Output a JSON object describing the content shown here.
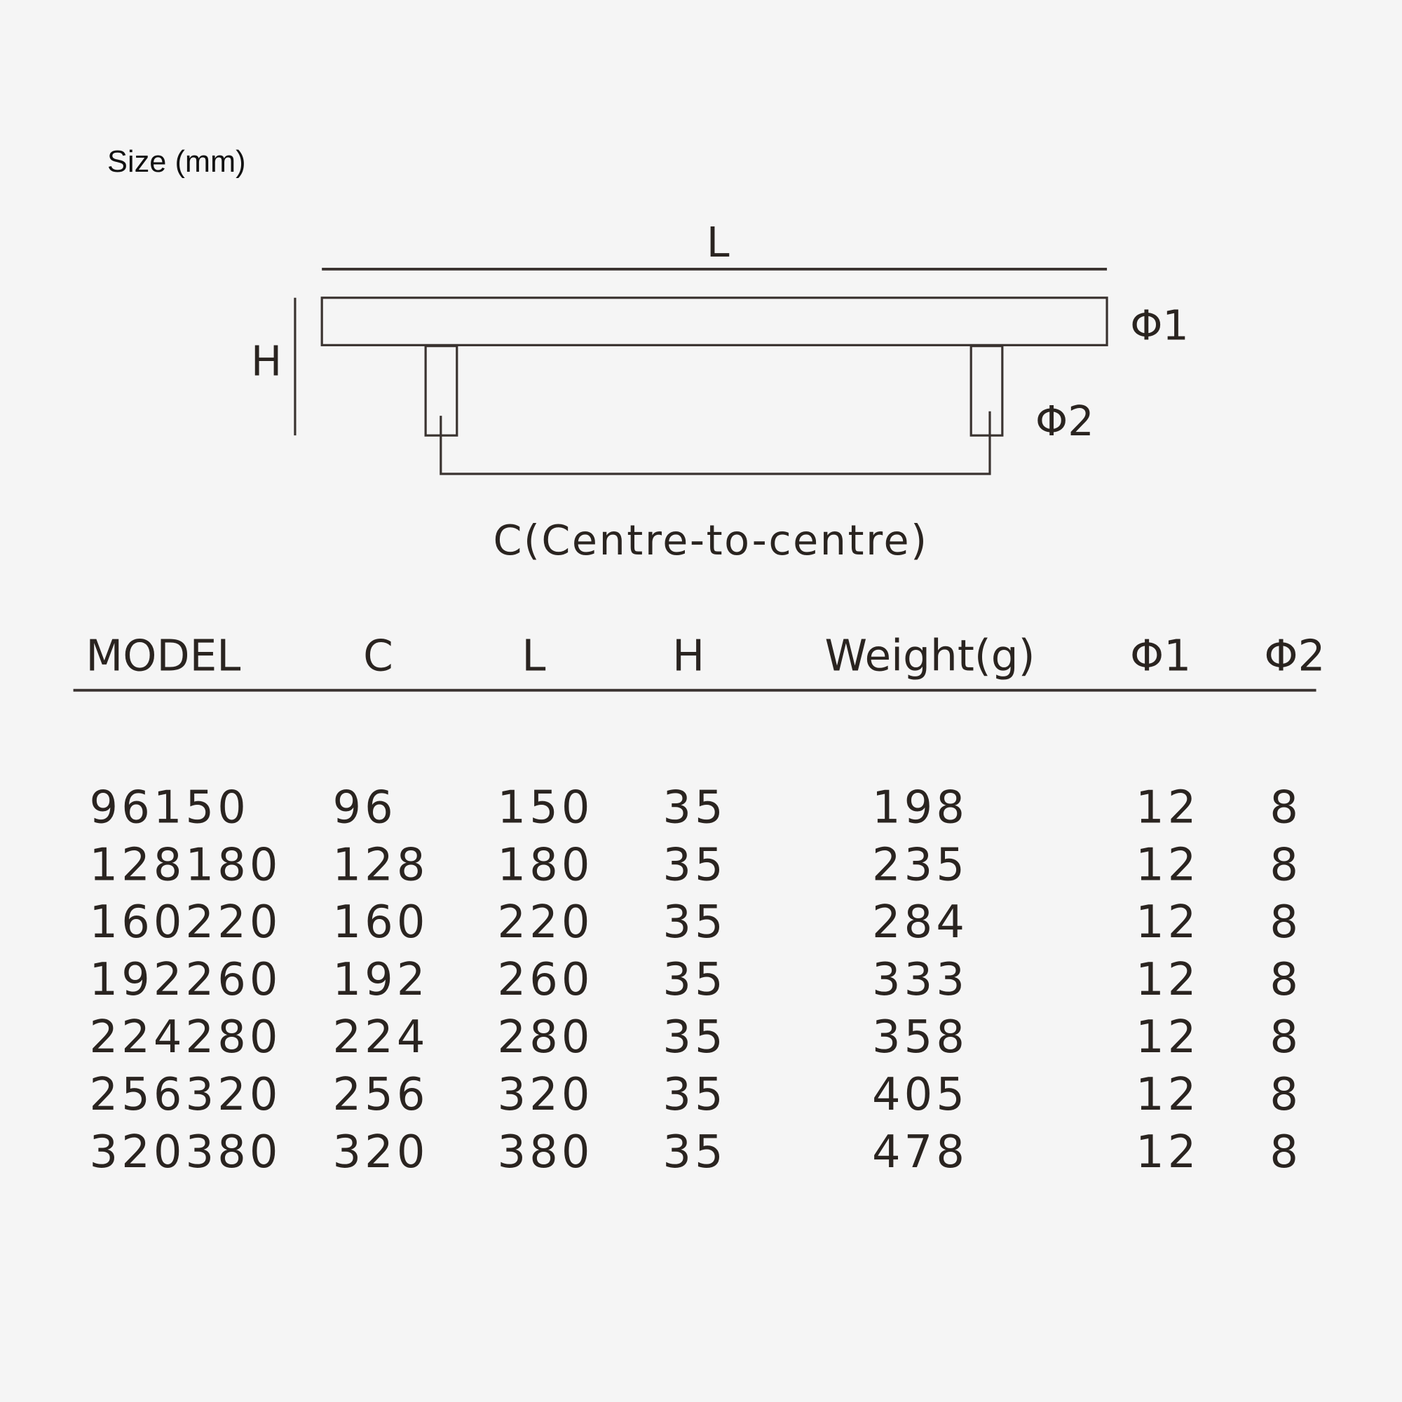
{
  "caption": "Size (mm)",
  "diagram": {
    "label_L": "L",
    "label_H": "H",
    "label_phi1": "Φ1",
    "label_phi2": "Φ2",
    "label_C": "C(Centre-to-centre)"
  },
  "table": {
    "headers": [
      "MODEL",
      "C",
      "L",
      "H",
      "Weight(g)",
      "Φ1",
      "Φ2"
    ],
    "rows": [
      [
        "96150",
        "96",
        "150",
        "35",
        "198",
        "12",
        "8"
      ],
      [
        "128180",
        "128",
        "180",
        "35",
        "235",
        "12",
        "8"
      ],
      [
        "160220",
        "160",
        "220",
        "35",
        "284",
        "12",
        "8"
      ],
      [
        "192260",
        "192",
        "260",
        "35",
        "333",
        "12",
        "8"
      ],
      [
        "224280",
        "224",
        "280",
        "35",
        "358",
        "12",
        "8"
      ],
      [
        "256320",
        "256",
        "320",
        "35",
        "405",
        "12",
        "8"
      ],
      [
        "320380",
        "320",
        "380",
        "35",
        "478",
        "12",
        "8"
      ]
    ]
  }
}
